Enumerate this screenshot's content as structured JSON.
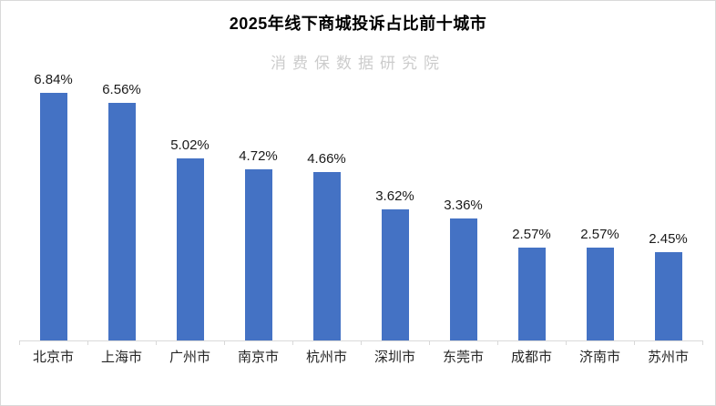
{
  "watermark": "消费保数据研究院",
  "chart_data": {
    "type": "bar",
    "title": "2025年线下商城投诉占比前十城市",
    "categories": [
      "北京市",
      "上海市",
      "广州市",
      "南京市",
      "杭州市",
      "深圳市",
      "东莞市",
      "成都市",
      "济南市",
      "苏州市"
    ],
    "values": [
      6.84,
      6.56,
      5.02,
      4.72,
      4.66,
      3.62,
      3.36,
      2.57,
      2.57,
      2.45
    ],
    "value_labels": [
      "6.84%",
      "6.56%",
      "5.02%",
      "4.72%",
      "4.66%",
      "3.62%",
      "3.36%",
      "2.57%",
      "2.57%",
      "2.45%"
    ],
    "unit": "%",
    "xlabel": "",
    "ylabel": "",
    "ylim": [
      0,
      7.2
    ],
    "grid": false,
    "legend": false,
    "data_labels_position": "above-bars",
    "bar_color": "#4472C4",
    "axis_line_color": "#D9D9D9",
    "title_color": "#000000",
    "watermark_color": "#CCCCCC"
  }
}
